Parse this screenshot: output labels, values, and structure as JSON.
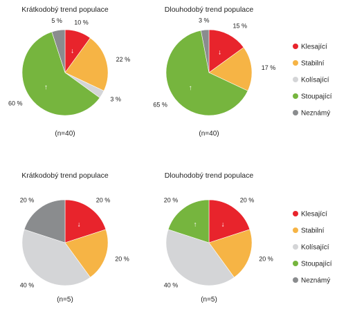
{
  "chart_data": [
    {
      "type": "pie",
      "title": "Krátkodobý trend populace",
      "note": "(n=40)",
      "slices": [
        {
          "category": "Klesající",
          "value": 10,
          "label": "10 %",
          "arrow": "↓"
        },
        {
          "category": "Stabilní",
          "value": 22,
          "label": "22 %"
        },
        {
          "category": "Kolísající",
          "value": 3,
          "label": "3 %"
        },
        {
          "category": "Stoupající",
          "value": 60,
          "label": "60 %",
          "arrow": "↑"
        },
        {
          "category": "Neznámý",
          "value": 5,
          "label": "5 %"
        }
      ]
    },
    {
      "type": "pie",
      "title": "Dlouhodobý trend populace",
      "note": "(n=40)",
      "slices": [
        {
          "category": "Klesající",
          "value": 15,
          "label": "15 %",
          "arrow": "↓"
        },
        {
          "category": "Stabilní",
          "value": 17,
          "label": "17 %"
        },
        {
          "category": "Stoupající",
          "value": 65,
          "label": "65 %",
          "arrow": "↑"
        },
        {
          "category": "Neznámý",
          "value": 3,
          "label": "3 %"
        }
      ]
    },
    {
      "type": "pie",
      "title": "Krátkodobý trend populace",
      "note": "(n=5)",
      "slices": [
        {
          "category": "Klesající",
          "value": 20,
          "label": "20 %",
          "arrow": "↓"
        },
        {
          "category": "Stabilní",
          "value": 20,
          "label": "20 %"
        },
        {
          "category": "Kolísající",
          "value": 40,
          "label": "40 %"
        },
        {
          "category": "Neznámý",
          "value": 20,
          "label": "20 %"
        }
      ]
    },
    {
      "type": "pie",
      "title": "Dlouhodobý trend populace",
      "note": "(n=5)",
      "slices": [
        {
          "category": "Klesající",
          "value": 20,
          "label": "20 %",
          "arrow": "↓"
        },
        {
          "category": "Stabilní",
          "value": 20,
          "label": "20 %"
        },
        {
          "category": "Kolísající",
          "value": 40,
          "label": "40 %"
        },
        {
          "category": "Stoupající",
          "value": 20,
          "label": "20 %",
          "arrow": "↑"
        }
      ]
    }
  ],
  "legend": [
    {
      "category": "Klesající",
      "color": "#e8242c"
    },
    {
      "category": "Stabilní",
      "color": "#f6b445"
    },
    {
      "category": "Kolísající",
      "color": "#d4d5d7"
    },
    {
      "category": "Stoupající",
      "color": "#76b53e"
    },
    {
      "category": "Neznámý",
      "color": "#8a8c8e"
    }
  ]
}
